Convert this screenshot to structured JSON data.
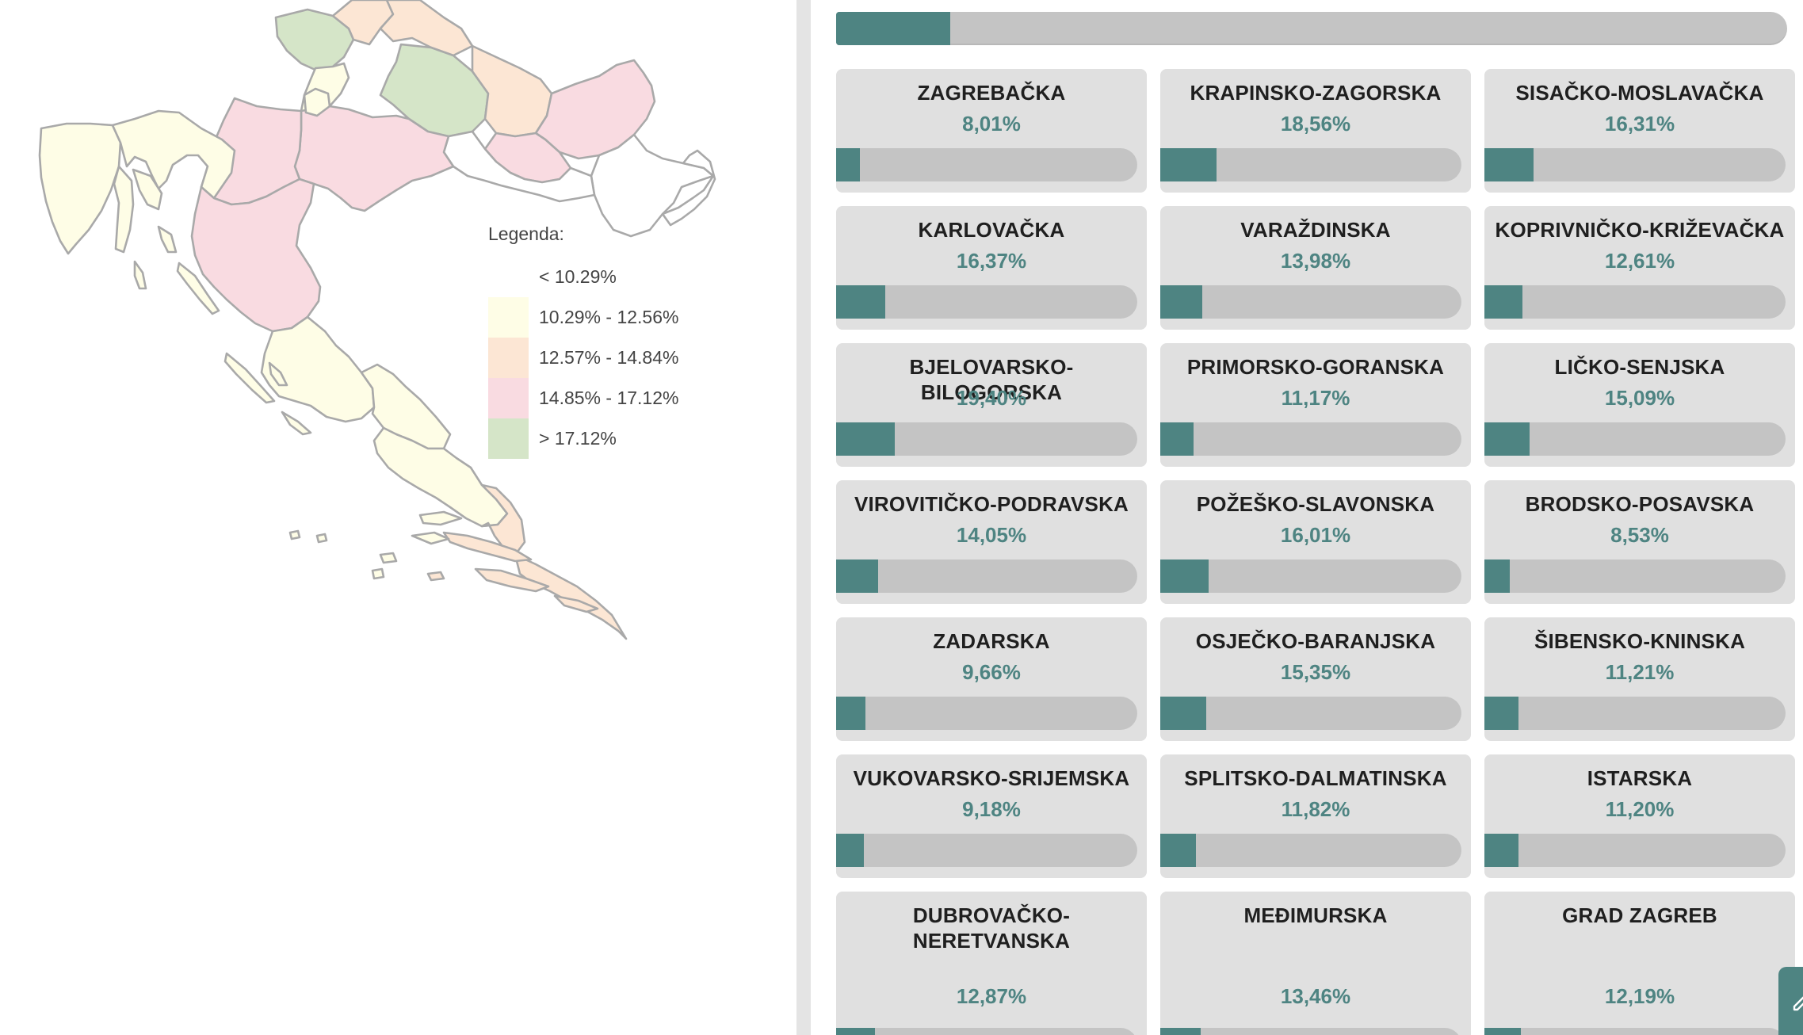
{
  "legend": {
    "title": "Legenda:",
    "items": [
      {
        "label": "< 10.29%",
        "color": "#ffffff"
      },
      {
        "label": "10.29% - 12.56%",
        "color": "#fefde6"
      },
      {
        "label": "12.57% - 14.84%",
        "color": "#fce6d4"
      },
      {
        "label": "14.85% - 17.12%",
        "color": "#f9dbe1"
      },
      {
        "label": "> 17.12%",
        "color": "#d5e5c8"
      }
    ]
  },
  "overall_progress": 12.0,
  "counties": [
    {
      "name": "ZAGREBAČKA",
      "value": "8,01%",
      "pct": 8.01
    },
    {
      "name": "KRAPINSKO-ZAGORSKA",
      "value": "18,56%",
      "pct": 18.56
    },
    {
      "name": "SISAČKO-MOSLAVAČKA",
      "value": "16,31%",
      "pct": 16.31
    },
    {
      "name": "KARLOVAČKA",
      "value": "16,37%",
      "pct": 16.37
    },
    {
      "name": "VARAŽDINSKA",
      "value": "13,98%",
      "pct": 13.98
    },
    {
      "name": "KOPRIVNIČKO-KRIŽEVAČKA",
      "value": "12,61%",
      "pct": 12.61
    },
    {
      "name": "BJELOVARSKO-BILOGORSKA",
      "value": "19,40%",
      "pct": 19.4
    },
    {
      "name": "PRIMORSKO-GORANSKA",
      "value": "11,17%",
      "pct": 11.17
    },
    {
      "name": "LIČKO-SENJSKA",
      "value": "15,09%",
      "pct": 15.09
    },
    {
      "name": "VIROVITIČKO-PODRAVSKA",
      "value": "14,05%",
      "pct": 14.05
    },
    {
      "name": "POŽEŠKO-SLAVONSKA",
      "value": "16,01%",
      "pct": 16.01
    },
    {
      "name": "BRODSKO-POSAVSKA",
      "value": "8,53%",
      "pct": 8.53
    },
    {
      "name": "ZADARSKA",
      "value": "9,66%",
      "pct": 9.66
    },
    {
      "name": "OSJEČKO-BARANJSKA",
      "value": "15,35%",
      "pct": 15.35
    },
    {
      "name": "ŠIBENSKO-KNINSKA",
      "value": "11,21%",
      "pct": 11.21
    },
    {
      "name": "VUKOVARSKO-SRIJEMSKA",
      "value": "9,18%",
      "pct": 9.18
    },
    {
      "name": "SPLITSKO-DALMATINSKA",
      "value": "11,82%",
      "pct": 11.82
    },
    {
      "name": "ISTARSKA",
      "value": "11,20%",
      "pct": 11.2
    },
    {
      "name": "DUBROVAČKO-NERETVANSKA",
      "value": "12,87%",
      "pct": 12.87
    },
    {
      "name": "MEĐIMURSKA",
      "value": "13,46%",
      "pct": 13.46
    },
    {
      "name": "GRAD ZAGREB",
      "value": "12,19%",
      "pct": 12.19
    }
  ],
  "colors": {
    "accent": "#4e8482",
    "bar_track": "#c4c4c4",
    "card_bg": "#e0e0e0"
  },
  "icons": {
    "corner_button": "edit-icon"
  }
}
